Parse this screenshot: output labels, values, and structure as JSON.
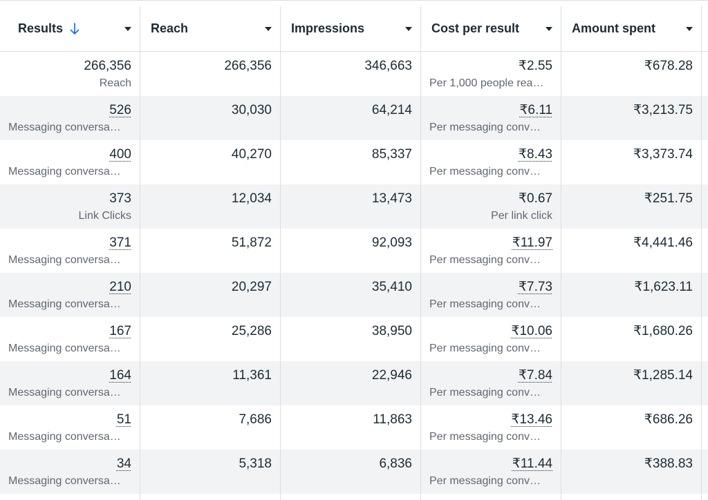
{
  "columns": [
    {
      "label": "Results",
      "sorted": true,
      "sort_icon": "arrow-down-icon"
    },
    {
      "label": "Reach"
    },
    {
      "label": "Impressions"
    },
    {
      "label": "Cost per result"
    },
    {
      "label": "Amount spent"
    }
  ],
  "rows": [
    {
      "results": "266,356",
      "results_type": "Reach",
      "reach": "266,356",
      "impressions": "346,663",
      "cost": "₹2.55",
      "cost_type": "Per 1,000 people rea…",
      "spent": "₹678.28"
    },
    {
      "results": "526",
      "results_type": "Messaging conversa…",
      "reach": "30,030",
      "impressions": "64,214",
      "cost": "₹6.11",
      "cost_type": "Per messaging conv…",
      "spent": "₹3,213.75"
    },
    {
      "results": "400",
      "results_type": "Messaging conversa…",
      "reach": "40,270",
      "impressions": "85,337",
      "cost": "₹8.43",
      "cost_type": "Per messaging conv…",
      "spent": "₹3,373.74"
    },
    {
      "results": "373",
      "results_type": "Link Clicks",
      "reach": "12,034",
      "impressions": "13,473",
      "cost": "₹0.67",
      "cost_type": "Per link click",
      "spent": "₹251.75"
    },
    {
      "results": "371",
      "results_type": "Messaging conversa…",
      "reach": "51,872",
      "impressions": "92,093",
      "cost": "₹11.97",
      "cost_type": "Per messaging conv…",
      "spent": "₹4,441.46"
    },
    {
      "results": "210",
      "results_type": "Messaging conversa…",
      "reach": "20,297",
      "impressions": "35,410",
      "cost": "₹7.73",
      "cost_type": "Per messaging conv…",
      "spent": "₹1,623.11"
    },
    {
      "results": "167",
      "results_type": "Messaging conversa…",
      "reach": "25,286",
      "impressions": "38,950",
      "cost": "₹10.06",
      "cost_type": "Per messaging conv…",
      "spent": "₹1,680.26"
    },
    {
      "results": "164",
      "results_type": "Messaging conversa…",
      "reach": "11,361",
      "impressions": "22,946",
      "cost": "₹7.84",
      "cost_type": "Per messaging conv…",
      "spent": "₹1,285.14"
    },
    {
      "results": "51",
      "results_type": "Messaging conversa…",
      "reach": "7,686",
      "impressions": "11,863",
      "cost": "₹13.46",
      "cost_type": "Per messaging conv…",
      "spent": "₹686.26"
    },
    {
      "results": "34",
      "results_type": "Messaging conversa…",
      "reach": "5,318",
      "impressions": "6,836",
      "cost": "₹11.44",
      "cost_type": "Per messaging conv…",
      "spent": "₹388.83"
    }
  ]
}
